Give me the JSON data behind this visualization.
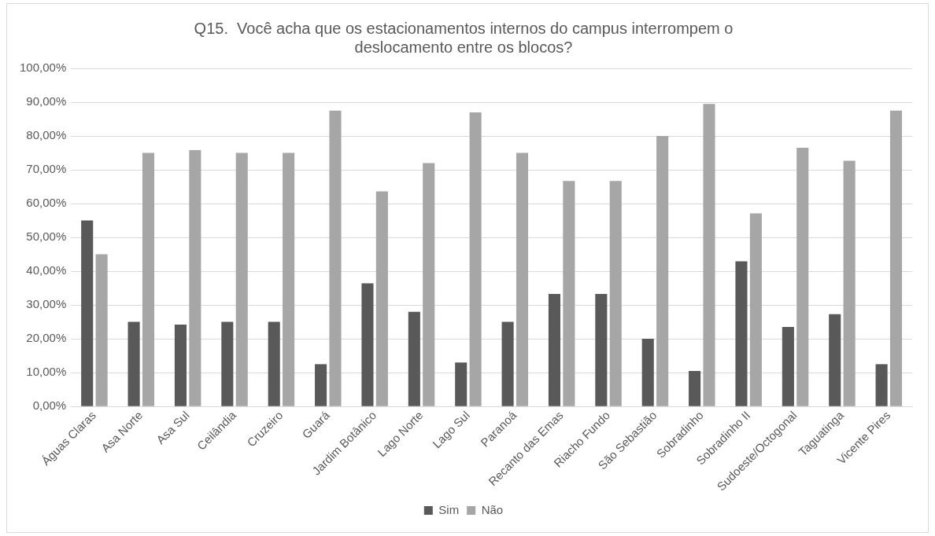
{
  "chart_data": {
    "type": "bar",
    "title": "Q15.  Você acha que os estacionamentos internos do campus interrompem o deslocamento entre os blocos?",
    "categories": [
      "Águas Claras",
      "Asa Norte",
      "Asa Sul",
      "Ceilândia",
      "Cruzeiro",
      "Guará",
      "Jardim Botânico",
      "Lago Norte",
      "Lago Sul",
      "Paranoá",
      "Recanto das Emas",
      "Riacho Fundo",
      "São Sebastião",
      "Sobradinho",
      "Sobradinho II",
      "Sudoeste/Octogonal",
      "Taguatinga",
      "Vicente Pires"
    ],
    "series": [
      {
        "name": "Sim",
        "color": "#595959",
        "values": [
          55,
          25,
          24.2,
          25,
          25,
          12.5,
          36.4,
          28,
          13,
          25,
          33.3,
          33.3,
          20,
          10.5,
          42.9,
          23.5,
          27.3,
          12.5
        ]
      },
      {
        "name": "Não",
        "color": "#a6a6a6",
        "values": [
          45,
          75,
          75.8,
          75,
          75,
          87.5,
          63.6,
          72,
          87,
          75,
          66.7,
          66.7,
          80,
          89.5,
          57.1,
          76.5,
          72.7,
          87.5
        ]
      }
    ],
    "ylim": [
      0,
      100
    ],
    "yticks": [
      {
        "value": 0,
        "label": "0,00%"
      },
      {
        "value": 10,
        "label": "10,00%"
      },
      {
        "value": 20,
        "label": "20,00%"
      },
      {
        "value": 30,
        "label": "30,00%"
      },
      {
        "value": 40,
        "label": "40,00%"
      },
      {
        "value": 50,
        "label": "50,00%"
      },
      {
        "value": 60,
        "label": "60,00%"
      },
      {
        "value": 70,
        "label": "70,00%"
      },
      {
        "value": 80,
        "label": "80,00%"
      },
      {
        "value": 90,
        "label": "90,00%"
      },
      {
        "value": 100,
        "label": "100,00%"
      }
    ],
    "grid": "y",
    "legend": "bottom"
  }
}
